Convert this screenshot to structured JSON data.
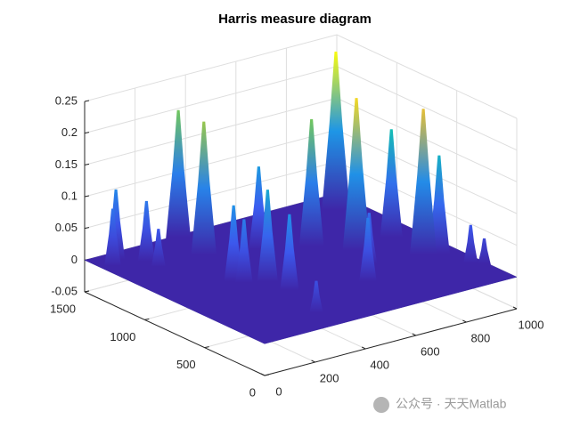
{
  "chart_data": {
    "type": "surface3d",
    "title": "Harris measure diagram",
    "xlim": [
      0,
      1000
    ],
    "ylim": [
      0,
      1500
    ],
    "zlim": [
      -0.05,
      0.25
    ],
    "xticks": [
      0,
      200,
      400,
      600,
      800,
      1000
    ],
    "yticks": [
      0,
      500,
      1000,
      1500
    ],
    "zticks": [
      -0.05,
      0,
      0.05,
      0.1,
      0.15,
      0.2,
      0.25
    ],
    "grid": true,
    "peaks": {
      "x": [
        906,
        740,
        650,
        900,
        885,
        930,
        960,
        990,
        345,
        353,
        362,
        330,
        260,
        280,
        150,
        84,
        150,
        40,
        300,
        700,
        600,
        500
      ],
      "y": [
        1310,
        790,
        975,
        835,
        537,
        500,
        300,
        250,
        700,
        535,
        1480,
        1200,
        805,
        760,
        1200,
        1416,
        1300,
        1350,
        200,
        600,
        400,
        1100
      ],
      "z": [
        0.25,
        0.24,
        0.2,
        0.17,
        0.23,
        0.155,
        0.06,
        0.04,
        0.145,
        0.12,
        0.2,
        0.21,
        0.12,
        0.1,
        0.06,
        0.11,
        0.095,
        0.09,
        0.05,
        0.08,
        0.1,
        0.13
      ]
    },
    "watermark": "公众号 · 天天Matlab"
  }
}
